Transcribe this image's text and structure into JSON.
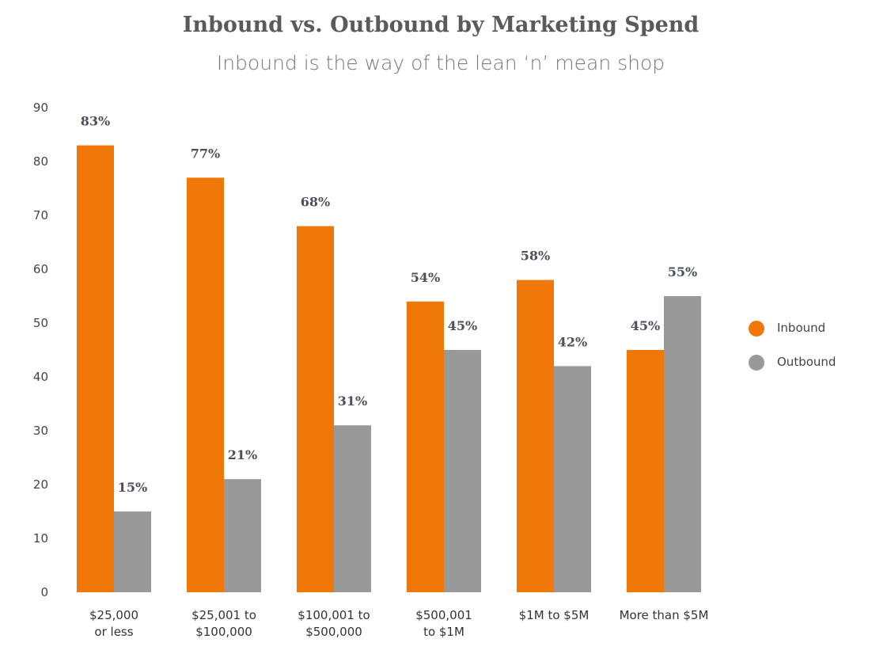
{
  "chart_data": {
    "type": "bar",
    "title": "Inbound vs. Outbound by Marketing Spend",
    "subtitle": "Inbound is the way of the lean ‘n’ mean shop",
    "categories": [
      "$25,000\nor less",
      "$25,001 to\n$100,000",
      "$100,001 to\n$500,000",
      "$500,001\nto $1M",
      "$1M to $5M",
      "More than $5M"
    ],
    "series": [
      {
        "name": "Inbound",
        "color": "#f07808",
        "values": [
          83,
          77,
          68,
          54,
          58,
          45
        ],
        "value_labels": [
          "83%",
          "77%",
          "68%",
          "54%",
          "58%",
          "45%"
        ]
      },
      {
        "name": "Outbound",
        "color": "#999999",
        "values": [
          15,
          21,
          31,
          45,
          42,
          55
        ],
        "value_labels": [
          "15%",
          "21%",
          "31%",
          "45%",
          "42%",
          "55%"
        ]
      }
    ],
    "ylim": [
      0,
      90
    ],
    "yticks": [
      0,
      10,
      20,
      30,
      40,
      50,
      60,
      70,
      80,
      90
    ],
    "grid": false,
    "legend": "right"
  }
}
